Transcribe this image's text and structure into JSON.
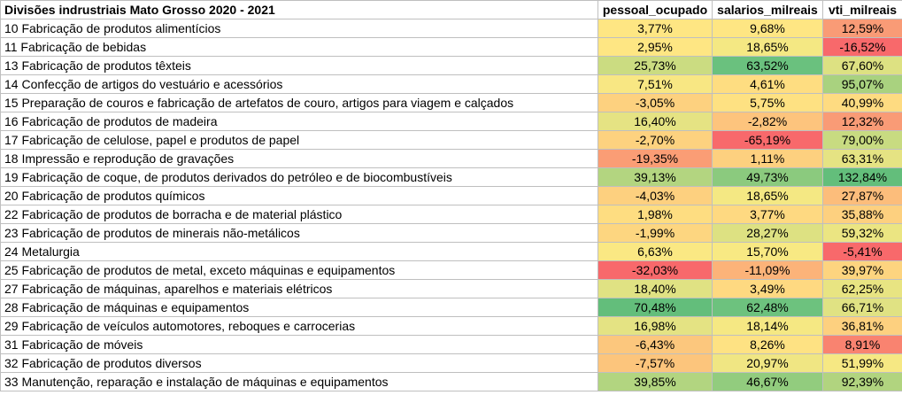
{
  "headers": [
    "Divisões indrustriais Mato Grosso 2020 - 2021",
    "pessoal_ocupado",
    "salarios_milreais",
    "vti_milreais"
  ],
  "rows": [
    {
      "name": "10 Fabricação de produtos alimentícios",
      "values": [
        "3,77%",
        "9,68%",
        "12,59%"
      ],
      "colors": [
        "#fee683",
        "#fee683",
        "#f99b76"
      ]
    },
    {
      "name": "11 Fabricação de bebidas",
      "values": [
        "2,95%",
        "18,65%",
        "-16,52%"
      ],
      "colors": [
        "#fee683",
        "#f4e883",
        "#f8696b"
      ]
    },
    {
      "name": "13 Fabricação de produtos têxteis",
      "values": [
        "25,73%",
        "63,52%",
        "67,60%"
      ],
      "colors": [
        "#cbdc81",
        "#6ac17e",
        "#dde182"
      ]
    },
    {
      "name": "14 Confecção de artigos do vestuário e acessórios",
      "values": [
        "7,51%",
        "4,61%",
        "95,07%"
      ],
      "colors": [
        "#f8e783",
        "#fedd81",
        "#a9d27f"
      ]
    },
    {
      "name": "15 Preparação de couros e fabricação de artefatos de couro, artigos para viagem e calçados",
      "values": [
        "-3,05%",
        "5,75%",
        "40,99%"
      ],
      "colors": [
        "#fdd17f",
        "#fee182",
        "#fedb81"
      ]
    },
    {
      "name": "16 Fabricação de produtos de madeira",
      "values": [
        "16,40%",
        "-2,82%",
        "12,32%"
      ],
      "colors": [
        "#e5e383",
        "#fdc47d",
        "#f99b76"
      ]
    },
    {
      "name": "17 Fabricação de celulose, papel e produtos de papel",
      "values": [
        "-2,70%",
        "-65,19%",
        "79,00%"
      ],
      "colors": [
        "#fdd27f",
        "#f8696b",
        "#c8db81"
      ]
    },
    {
      "name": "18 Impressão e reprodução de gravações",
      "values": [
        "-19,35%",
        "1,11%",
        "63,31%"
      ],
      "colors": [
        "#fa9d75",
        "#fdd07f",
        "#e5e383"
      ]
    },
    {
      "name": "19 Fabricação de coque, de produtos derivados do petróleo e de biocombustíveis",
      "values": [
        "39,13%",
        "49,73%",
        "132,84%"
      ],
      "colors": [
        "#b3d580",
        "#8bca7e",
        "#63be7b"
      ]
    },
    {
      "name": "20 Fabricação de produtos químicos",
      "values": [
        "-4,03%",
        "18,65%",
        "27,87%"
      ],
      "colors": [
        "#fdd07f",
        "#f4e883",
        "#fcbd7b"
      ]
    },
    {
      "name": "22 Fabricação de produtos de borracha e de material plástico",
      "values": [
        "1,98%",
        "3,77%",
        "35,88%"
      ],
      "colors": [
        "#fedd81",
        "#fed981",
        "#fdd07f"
      ]
    },
    {
      "name": "23 Fabricação de produtos de minerais não-metálicos",
      "values": [
        "-1,99%",
        "28,27%",
        "59,32%"
      ],
      "colors": [
        "#fdd680",
        "#dde182",
        "#ebe582"
      ]
    },
    {
      "name": "24 Metalurgia",
      "values": [
        "6,63%",
        "15,70%",
        "-5,41%"
      ],
      "colors": [
        "#fae883",
        "#f8e983",
        "#f8696b"
      ]
    },
    {
      "name": "25 Fabricação de produtos de metal, exceto máquinas e equipamentos",
      "values": [
        "-32,03%",
        "-11,09%",
        "39,97%"
      ],
      "colors": [
        "#f8696b",
        "#fcb379",
        "#fdd47f"
      ]
    },
    {
      "name": "27 Fabricação de máquinas, aparelhos e materiais elétricos",
      "values": [
        "18,40%",
        "3,49%",
        "62,25%"
      ],
      "colors": [
        "#e0e283",
        "#fed981",
        "#e8e482"
      ]
    },
    {
      "name": "28 Fabricação de máquinas e equipamentos",
      "values": [
        "70,48%",
        "62,48%",
        "66,71%"
      ],
      "colors": [
        "#63be7b",
        "#6dc27e",
        "#e0e283"
      ]
    },
    {
      "name": "29 Fabricação de veículos automotores, reboques e carrocerias",
      "values": [
        "16,98%",
        "18,14%",
        "36,81%"
      ],
      "colors": [
        "#e4e383",
        "#f5e883",
        "#fdd07f"
      ]
    },
    {
      "name": "31 Fabricação de móveis",
      "values": [
        "-6,43%",
        "8,26%",
        "8,91%"
      ],
      "colors": [
        "#fcc77d",
        "#fee283",
        "#f98370"
      ]
    },
    {
      "name": "32 Fabricação de produtos diversos",
      "values": [
        "-7,57%",
        "20,97%",
        "51,99%"
      ],
      "colors": [
        "#fcc57c",
        "#f0e683",
        "#f6e883"
      ]
    },
    {
      "name": "33 Manutenção, reparação e instalação de máquinas e equipamentos",
      "values": [
        "39,85%",
        "46,67%",
        "92,39%"
      ],
      "colors": [
        "#b2d580",
        "#92cc7e",
        "#b1d47f"
      ]
    }
  ]
}
